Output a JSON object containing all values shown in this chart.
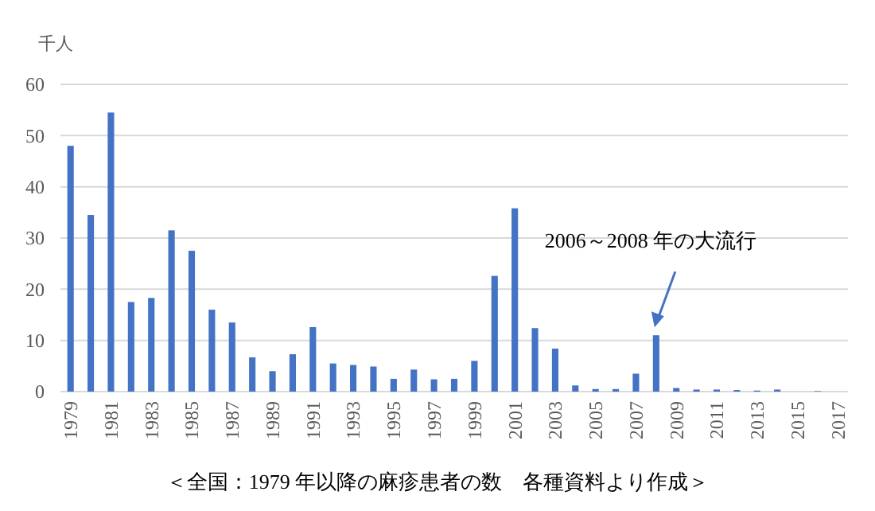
{
  "chart_data": {
    "type": "bar",
    "ylabel": "千人",
    "categories": [
      "1979",
      null,
      "1981",
      null,
      "1983",
      null,
      "1985",
      null,
      "1987",
      null,
      "1989",
      null,
      "1991",
      null,
      "1993",
      null,
      "1995",
      null,
      "1997",
      null,
      "1999",
      null,
      "2001",
      null,
      "2003",
      null,
      "2005",
      null,
      "2007",
      null,
      "2009",
      null,
      "2011",
      null,
      "2013",
      null,
      "2015",
      null,
      "2017"
    ],
    "values": [
      48,
      34.5,
      54.5,
      17.5,
      18.3,
      31.5,
      27.5,
      16,
      13.5,
      6.7,
      4,
      7.3,
      12.6,
      5.5,
      5.2,
      4.9,
      2.5,
      4.3,
      2.4,
      2.5,
      6,
      22.6,
      35.8,
      12.4,
      8.4,
      1.2,
      0.5,
      0.5,
      3.5,
      11,
      0.7,
      0.4,
      0.4,
      0.3,
      0.2,
      0.4,
      0,
      0.1,
      0
    ],
    "color": "#4472c4",
    "ylim": [
      0,
      60
    ],
    "yticks": [
      0,
      10,
      20,
      30,
      40,
      50,
      60
    ],
    "grid": "y",
    "annotations": [
      "2006～2008 年の大流行",
      "＜全国：1979 年以降の麻疹患者の数　各種資料より作成＞"
    ]
  }
}
